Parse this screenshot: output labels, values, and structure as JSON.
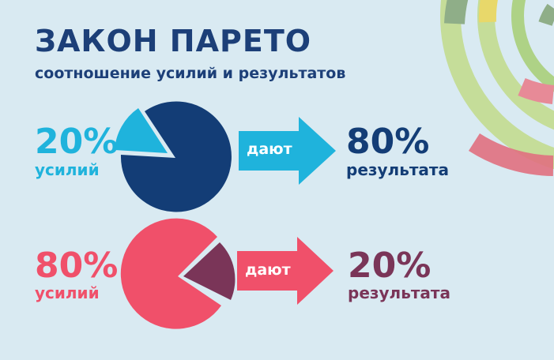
{
  "header": {
    "title": "ЗАКОН ПАРЕТО",
    "subtitle": "соотношение усилий и результатов"
  },
  "rows": [
    {
      "effort_value": "20%",
      "effort_label": "усилий",
      "arrow_label": "дают",
      "result_value": "80%",
      "result_label": "результата",
      "colors": {
        "effort": "#1fb3dc",
        "pie_main": "#133d76",
        "pie_slice": "#1fb3dc",
        "arrow": "#1fb3dc",
        "result": "#133d76"
      }
    },
    {
      "effort_value": "80%",
      "effort_label": "усилий",
      "arrow_label": "дают",
      "result_value": "20%",
      "result_label": "результата",
      "colors": {
        "effort": "#f0506a",
        "pie_main": "#f0506a",
        "pie_slice": "#7a3558",
        "arrow": "#f0506a",
        "result": "#7a3558"
      }
    }
  ]
}
